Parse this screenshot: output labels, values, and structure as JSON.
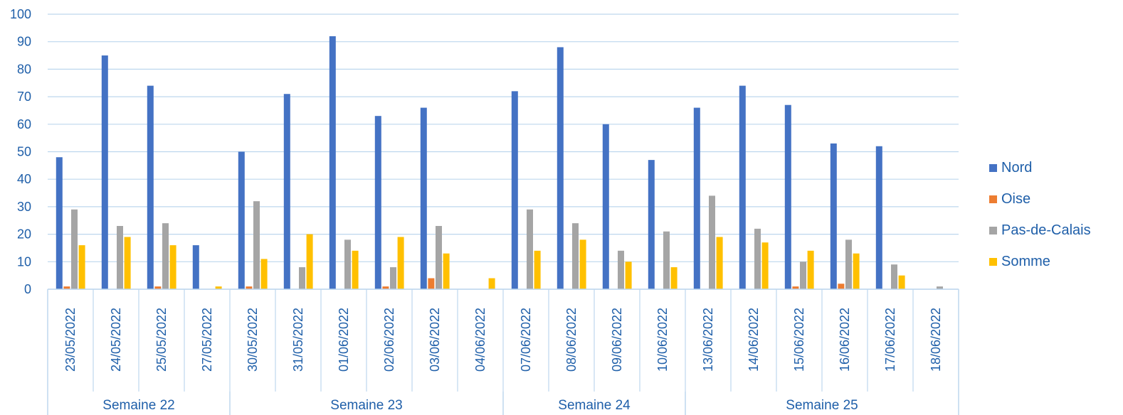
{
  "chart_data": {
    "type": "bar",
    "title": "",
    "xlabel": "",
    "ylabel": "",
    "ylim": [
      0,
      100
    ],
    "y_ticks": [
      0,
      10,
      20,
      30,
      40,
      50,
      60,
      70,
      80,
      90,
      100
    ],
    "grid": true,
    "legend_position": "right",
    "categories": [
      "23/05/2022",
      "24/05/2022",
      "25/05/2022",
      "27/05/2022",
      "30/05/2022",
      "31/05/2022",
      "01/06/2022",
      "02/06/2022",
      "03/06/2022",
      "04/06/2022",
      "07/06/2022",
      "08/06/2022",
      "09/06/2022",
      "10/06/2022",
      "13/06/2022",
      "14/06/2022",
      "15/06/2022",
      "16/06/2022",
      "17/06/2022",
      "18/06/2022"
    ],
    "groups": [
      {
        "label": "Semaine 22",
        "count": 4
      },
      {
        "label": "Semaine 23",
        "count": 6
      },
      {
        "label": "Semaine 24",
        "count": 4
      },
      {
        "label": "Semaine 25",
        "count": 6
      }
    ],
    "series": [
      {
        "name": "Nord",
        "color": "#4472C4",
        "values": [
          48,
          85,
          74,
          16,
          50,
          71,
          92,
          63,
          66,
          0,
          72,
          88,
          60,
          47,
          66,
          74,
          67,
          53,
          52,
          0
        ]
      },
      {
        "name": "Oise",
        "color": "#ED7D31",
        "values": [
          1,
          0,
          1,
          0,
          1,
          0,
          0,
          1,
          4,
          0,
          0,
          0,
          0,
          0,
          0,
          0,
          1,
          2,
          0,
          0
        ]
      },
      {
        "name": "Pas-de-Calais",
        "color": "#A5A5A5",
        "values": [
          29,
          23,
          24,
          0,
          32,
          8,
          18,
          8,
          23,
          0,
          29,
          24,
          14,
          21,
          34,
          22,
          10,
          18,
          9,
          1
        ]
      },
      {
        "name": "Somme",
        "color": "#FFC000",
        "values": [
          16,
          19,
          16,
          1,
          11,
          20,
          14,
          19,
          13,
          4,
          14,
          18,
          10,
          8,
          19,
          17,
          14,
          13,
          5,
          0
        ]
      }
    ],
    "colors": {
      "axis_text": "#1F5FA9",
      "gridline": "#BDD7EE",
      "axis_line": "#BDD7EE"
    }
  }
}
